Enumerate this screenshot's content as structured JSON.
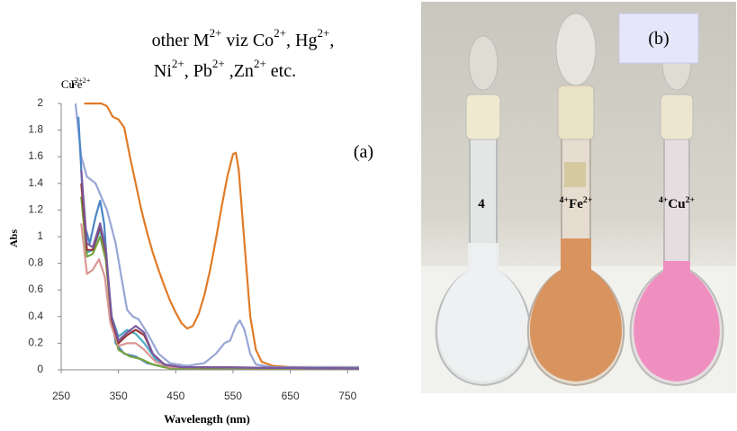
{
  "chart_data": {
    "type": "line",
    "annotations": [
      "other M2+ viz Co2+, Hg2+,",
      "Ni2+, Pb2+ ,Zn2+ etc.",
      "(a)"
    ],
    "xlabel": "Wavelength (nm)",
    "ylabel": "Abs",
    "xlim": [
      250,
      770
    ],
    "ylim": [
      0,
      2
    ],
    "xticks": [
      250,
      350,
      450,
      550,
      650,
      750
    ],
    "yticks": [
      0,
      0.2,
      0.4,
      0.6,
      0.8,
      1,
      1.2,
      1.4,
      1.6,
      1.8,
      2
    ],
    "grid": false,
    "series": [
      {
        "name": "Fe2+",
        "color": "#e07b28",
        "x": [
          290,
          300,
          320,
          330,
          340,
          350,
          360,
          370,
          380,
          390,
          400,
          410,
          420,
          430,
          440,
          450,
          460,
          470,
          480,
          490,
          500,
          510,
          520,
          530,
          540,
          550,
          555,
          560,
          570,
          580,
          590,
          600,
          620,
          650,
          700,
          770
        ],
        "values": [
          2,
          2,
          2,
          1.98,
          1.9,
          1.88,
          1.82,
          1.6,
          1.4,
          1.2,
          1.03,
          0.88,
          0.75,
          0.63,
          0.52,
          0.43,
          0.35,
          0.31,
          0.33,
          0.42,
          0.56,
          0.75,
          0.98,
          1.22,
          1.45,
          1.62,
          1.63,
          1.5,
          0.95,
          0.4,
          0.15,
          0.06,
          0.03,
          0.02,
          0.02,
          0.02
        ]
      },
      {
        "name": "Cu2+",
        "color": "#98a6d4",
        "x": [
          275,
          285,
          295,
          310,
          330,
          345,
          355,
          365,
          375,
          385,
          400,
          420,
          440,
          470,
          500,
          520,
          535,
          545,
          555,
          562,
          570,
          580,
          590,
          620,
          770
        ],
        "values": [
          2,
          1.6,
          1.45,
          1.4,
          1.2,
          0.95,
          0.7,
          0.45,
          0.4,
          0.38,
          0.28,
          0.12,
          0.05,
          0.03,
          0.05,
          0.12,
          0.2,
          0.22,
          0.33,
          0.37,
          0.3,
          0.12,
          0.04,
          0.02,
          0.02
        ]
      },
      {
        "color": "#4a86c5",
        "x": [
          280,
          290,
          300,
          310,
          318,
          325,
          335,
          345,
          360,
          380,
          400,
          430,
          770
        ],
        "values": [
          1.9,
          1.1,
          0.95,
          1.15,
          1.27,
          1.1,
          0.5,
          0.2,
          0.12,
          0.1,
          0.05,
          0.02,
          0.01
        ]
      },
      {
        "color": "#4bacc6",
        "x": [
          285,
          295,
          305,
          318,
          328,
          338,
          350,
          365,
          380,
          395,
          415,
          440,
          770
        ],
        "values": [
          1.3,
          0.88,
          0.9,
          1.05,
          0.85,
          0.4,
          0.25,
          0.3,
          0.27,
          0.2,
          0.08,
          0.02,
          0.01
        ]
      },
      {
        "color": "#77a33f",
        "x": [
          285,
          295,
          305,
          318,
          328,
          338,
          350,
          370,
          390,
          410,
          440,
          770
        ],
        "values": [
          1.3,
          0.85,
          0.87,
          1,
          0.82,
          0.35,
          0.15,
          0.1,
          0.08,
          0.04,
          0.01,
          0.01
        ]
      },
      {
        "color": "#d99694",
        "x": [
          285,
          295,
          305,
          316,
          326,
          336,
          350,
          365,
          380,
          395,
          415,
          440,
          770
        ],
        "values": [
          1.1,
          0.72,
          0.75,
          0.83,
          0.7,
          0.35,
          0.18,
          0.2,
          0.2,
          0.15,
          0.06,
          0.02,
          0.01
        ]
      },
      {
        "color": "#943634",
        "x": [
          285,
          295,
          305,
          318,
          328,
          338,
          350,
          365,
          380,
          395,
          410,
          430,
          460,
          770
        ],
        "values": [
          1.4,
          0.9,
          0.9,
          1.08,
          0.88,
          0.38,
          0.2,
          0.26,
          0.3,
          0.26,
          0.12,
          0.04,
          0.02,
          0.01
        ]
      },
      {
        "color": "#7a5aa0",
        "x": [
          285,
          295,
          305,
          318,
          328,
          338,
          350,
          365,
          380,
          395,
          410,
          430,
          460,
          770
        ],
        "values": [
          1.5,
          0.95,
          0.92,
          1.1,
          0.9,
          0.4,
          0.22,
          0.28,
          0.33,
          0.28,
          0.12,
          0.04,
          0.02,
          0.01
        ]
      }
    ]
  },
  "photo": {
    "label": "(b)",
    "flask_labels": [
      "4",
      "4+Fe2+",
      "4+Cu2+"
    ]
  }
}
